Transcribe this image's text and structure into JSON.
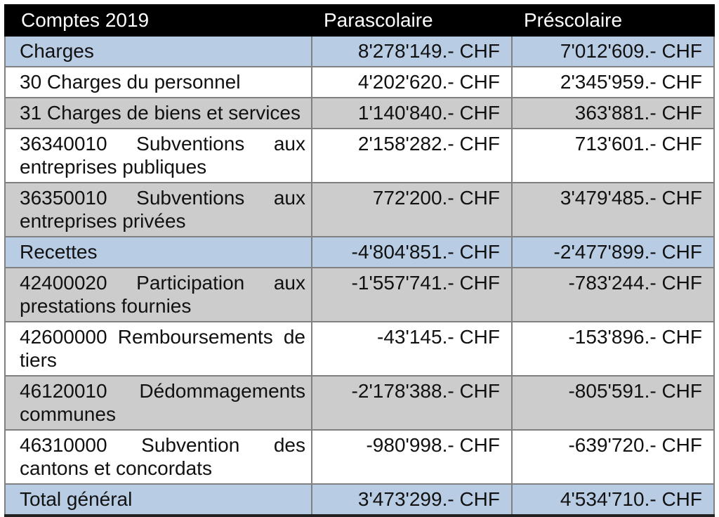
{
  "table": {
    "title_header": "Comptes 2019",
    "header": {
      "col1": "Comptes 2019",
      "col2": "Parascolaire",
      "col3": "Préscolaire"
    },
    "rows": [
      {
        "label": "Charges",
        "parascolaire": "8'278'149.- CHF",
        "prescolaire": "7'012'609.- CHF",
        "variant": "blue"
      },
      {
        "label": "30 Charges du personnel",
        "parascolaire": "4'202'620.- CHF",
        "prescolaire": "2'345'959.- CHF",
        "variant": "white"
      },
      {
        "label": "31 Charges de biens et services",
        "parascolaire": "1'140'840.- CHF",
        "prescolaire": "363'881.- CHF",
        "variant": "gray"
      },
      {
        "label": "36340010 Subventions aux entreprises publiques",
        "parascolaire": "2'158'282.- CHF",
        "prescolaire": "713'601.- CHF",
        "variant": "white"
      },
      {
        "label": "36350010 Subventions aux entreprises privées",
        "parascolaire": "772'200.- CHF",
        "prescolaire": "3'479'485.- CHF",
        "variant": "gray"
      },
      {
        "label": "Recettes",
        "parascolaire": "-4'804'851.- CHF",
        "prescolaire": "-2'477'899.- CHF",
        "variant": "blue"
      },
      {
        "label": "42400020 Participation aux prestations fournies",
        "parascolaire": "-1'557'741.- CHF",
        "prescolaire": "-783'244.- CHF",
        "variant": "gray"
      },
      {
        "label": "42600000 Remboursements de tiers",
        "parascolaire": "-43'145.- CHF",
        "prescolaire": "-153'896.- CHF",
        "variant": "white"
      },
      {
        "label": "46120010 Dédommagements communes",
        "parascolaire": "-2'178'388.- CHF",
        "prescolaire": "-805'591.- CHF",
        "variant": "gray"
      },
      {
        "label": "46310000 Subvention des cantons et concordats",
        "parascolaire": "-980'998.- CHF",
        "prescolaire": "-639'720.- CHF",
        "variant": "white"
      },
      {
        "label": "Total général",
        "parascolaire": "3'473'299.- CHF",
        "prescolaire": "4'534'710.- CHF",
        "variant": "blue"
      }
    ],
    "colors": {
      "header_bg": "#000000",
      "header_text": "#ffffff",
      "row_blue": "#b8cce4",
      "row_gray": "#cccccc",
      "row_white": "#ffffff",
      "border": "#808080",
      "outer_bottom_border": "#222222"
    },
    "currency": "CHF"
  }
}
